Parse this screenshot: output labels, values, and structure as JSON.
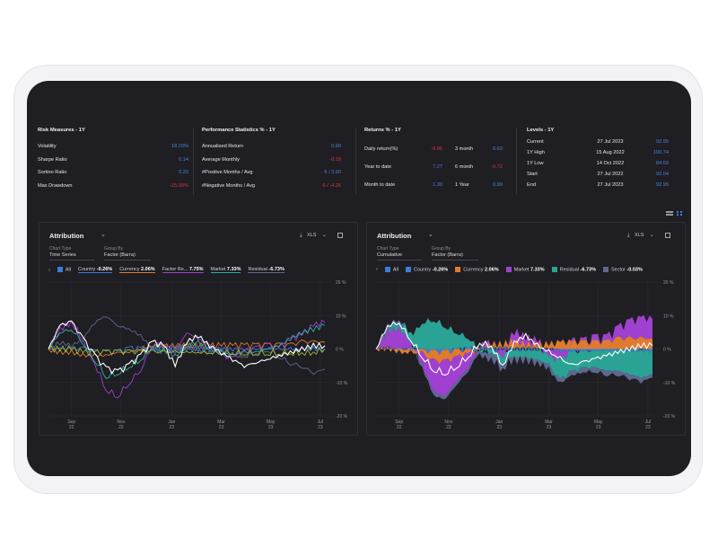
{
  "risk": {
    "title": "Risk Measures - 1Y",
    "rows": [
      {
        "label": "Volatility",
        "value": "18.20%",
        "sign": "pos"
      },
      {
        "label": "Sharpe Ratio",
        "value": "0.14",
        "sign": "pos"
      },
      {
        "label": "Sortino Ratio",
        "value": "0.20",
        "sign": "pos"
      },
      {
        "label": "Max Drawdown",
        "value": "-15.99%",
        "sign": "neg"
      }
    ]
  },
  "perf": {
    "title": "Performance Statistics % - 1Y",
    "rows": [
      {
        "label": "Annualised Return",
        "value": "0.99",
        "sign": "pos"
      },
      {
        "label": "Average Monthly",
        "value": "-0.18",
        "sign": "neg"
      },
      {
        "label": "#Positive Months / Avg",
        "value": "6 / 3.90",
        "sign": "pos"
      },
      {
        "label": "#Negative Months / Avg",
        "value": "6 / -4.26",
        "sign": "neg"
      }
    ]
  },
  "returns": {
    "title": "Returns % - 1Y",
    "rows": [
      {
        "label": "Daily return(%)",
        "value": "-0.05",
        "sign": "neg",
        "label2": "3 month",
        "value2": "6.63",
        "sign2": "pos"
      },
      {
        "label": "Year to date",
        "value": "7.27",
        "sign": "pos",
        "label2": "6 month",
        "value2": "-0.72",
        "sign2": "neg"
      },
      {
        "label": "Month to date",
        "value": "1.30",
        "sign": "pos",
        "label2": "1 Year",
        "value2": "0.99",
        "sign2": "pos"
      }
    ]
  },
  "levels": {
    "title": "Levels - 1Y",
    "rows": [
      {
        "label": "Current",
        "date": "27 Jul 2023",
        "value": "92.95"
      },
      {
        "label": "1Y High",
        "date": "15 Aug 2022",
        "value": "100.74"
      },
      {
        "label": "1Y Low",
        "date": "14 Oct 2022",
        "value": "84.69"
      },
      {
        "label": "Start",
        "date": "27 Jul 2022",
        "value": "92.04"
      },
      {
        "label": "End",
        "date": "27 Jul 2023",
        "value": "92.95"
      }
    ]
  },
  "panels": [
    {
      "title": "Attribution",
      "xls": "XLS",
      "chart_type_label": "Chart Type",
      "chart_type": "Time Series",
      "group_by_label": "Group By",
      "group_by": "Factor (Barra)",
      "all_label": "All"
    },
    {
      "title": "Attribution",
      "xls": "XLS",
      "chart_type_label": "Chart Type",
      "chart_type": "Cumulative",
      "group_by_label": "Group By",
      "group_by": "Factor (Barra)",
      "all_label": "All"
    }
  ],
  "chart_data": [
    {
      "type": "line",
      "title": "Attribution - Time Series",
      "ylim": [
        -20,
        20
      ],
      "yticks": [
        "20 %",
        "10 %",
        "0 %",
        "-10 %",
        "-20 %"
      ],
      "xticks": [
        {
          "m": "Sep",
          "y": "22",
          "i": 2
        },
        {
          "m": "Nov",
          "y": "22",
          "i": 6.3
        },
        {
          "m": "Jan",
          "y": "23",
          "i": 10.7
        },
        {
          "m": "Mar",
          "y": "23",
          "i": 15
        },
        {
          "m": "May",
          "y": "23",
          "i": 19.3
        },
        {
          "m": "Jul",
          "y": "23",
          "i": 23.6
        }
      ],
      "series": [
        {
          "name": "Country",
          "value": "-0.26%",
          "color": "#3b7dd8",
          "values": [
            0,
            0,
            0,
            0,
            -1,
            -1,
            -1,
            0,
            0,
            0,
            0,
            0,
            0,
            0,
            0,
            0,
            0,
            0,
            0,
            0,
            0,
            0,
            0,
            0,
            0
          ]
        },
        {
          "name": "Currency",
          "value": "2.06%",
          "color": "#e07a2e",
          "values": [
            0,
            -1,
            -1,
            -2,
            -2,
            -2,
            -1,
            -1,
            0,
            1,
            1,
            1,
            1,
            1,
            1,
            1,
            1,
            1,
            1,
            1,
            1,
            1,
            2,
            2,
            2
          ]
        },
        {
          "name": "Factor Re...",
          "value": "7.75%",
          "color": "#a040d0",
          "values": [
            0,
            6,
            8,
            3,
            -4,
            -12,
            -14,
            -10,
            -6,
            1,
            2,
            -1,
            5,
            3,
            1,
            -2,
            -3,
            -1,
            0,
            1,
            0,
            3,
            4,
            7,
            8
          ]
        },
        {
          "name": "Market",
          "value": "7.33%",
          "color": "#2bb0a0",
          "values": [
            0,
            5,
            6,
            2,
            -3,
            -8,
            -7,
            -5,
            -3,
            1,
            0,
            -2,
            1,
            2,
            0,
            -1,
            -2,
            -1,
            -1,
            0,
            1,
            3,
            5,
            6,
            7
          ]
        },
        {
          "name": "Residual",
          "value": "-6.73%",
          "color": "#5c6890",
          "values": [
            0,
            2,
            1,
            3,
            8,
            10,
            7,
            6,
            4,
            0,
            -1,
            0,
            1,
            0,
            -1,
            0,
            -1,
            -2,
            -1,
            0,
            -2,
            -4,
            -5,
            -7,
            -6
          ]
        },
        {
          "name": "",
          "value": "",
          "color": "#9ab830",
          "values": [
            0,
            0,
            0,
            -1,
            -1,
            -1,
            -1,
            -1,
            -1,
            -1,
            -1,
            -1,
            -1,
            -1,
            -1,
            -1,
            -1,
            -1,
            -1,
            -1,
            -1,
            -1,
            -1,
            -1,
            0
          ]
        },
        {
          "name": "",
          "value": "",
          "color": "#ffffff",
          "values": [
            0,
            7,
            8,
            3,
            -2,
            -6,
            -7,
            -5,
            -2,
            2,
            1,
            -5,
            2,
            4,
            1,
            -1,
            -3,
            -5,
            -4,
            -3,
            -2,
            -1,
            0,
            1,
            1
          ]
        }
      ]
    },
    {
      "type": "area",
      "title": "Attribution - Cumulative",
      "ylim": [
        -20,
        20
      ],
      "yticks": [
        "20 %",
        "10 %",
        "0 %",
        "-10 %",
        "-20 %"
      ],
      "xticks": [
        {
          "m": "Sep",
          "y": "22",
          "i": 2
        },
        {
          "m": "Nov",
          "y": "22",
          "i": 6.3
        },
        {
          "m": "Jan",
          "y": "23",
          "i": 10.7
        },
        {
          "m": "Mar",
          "y": "23",
          "i": 15
        },
        {
          "m": "May",
          "y": "23",
          "i": 19.3
        },
        {
          "m": "Jul",
          "y": "23",
          "i": 23.6
        }
      ],
      "series": [
        {
          "name": "Country",
          "value": "-0.26%",
          "color": "#3b7dd8",
          "values": [
            0,
            0,
            0,
            0,
            -0.5,
            -1,
            -1,
            -0.5,
            0,
            0,
            0,
            0,
            0,
            0,
            0,
            0,
            -0.5,
            -0.5,
            -0.5,
            -0.5,
            -0.5,
            -0.5,
            -0.5,
            -0.5,
            -0.5
          ]
        },
        {
          "name": "Currency",
          "value": "2.06%",
          "color": "#e07a2e",
          "values": [
            0,
            0,
            -1,
            -1,
            -1,
            -3,
            -3,
            -2,
            -1,
            0,
            1,
            1,
            2,
            1,
            1,
            1,
            2,
            2,
            2,
            2,
            2,
            3,
            3,
            3,
            3
          ]
        },
        {
          "name": "Market",
          "value": "7.33%",
          "color": "#a040d0",
          "values": [
            0,
            5,
            6,
            2,
            -3,
            -9,
            -10,
            -7,
            -4,
            1,
            1,
            -2,
            3,
            2,
            1,
            -2,
            -3,
            0,
            0,
            1,
            1,
            3,
            5,
            6,
            6
          ]
        },
        {
          "name": "Residual",
          "value": "-6.73%",
          "color": "#2aa394",
          "values": [
            0,
            1,
            2,
            3,
            8,
            9,
            7,
            5,
            3,
            0,
            -1,
            -2,
            -2,
            -2,
            -3,
            -3,
            -6,
            -6,
            -5,
            -5,
            -6,
            -6,
            -7,
            -8,
            -7
          ]
        },
        {
          "name": "Sector",
          "value": "-0.03%",
          "color": "#5c6890",
          "values": [
            0,
            1,
            1,
            0,
            -1,
            -1,
            -1,
            -1,
            -1,
            -1,
            -2,
            -2,
            -1,
            -1,
            -1,
            -1,
            -1,
            -1,
            -1,
            -1,
            -1,
            -1,
            -1,
            -1,
            -1
          ]
        }
      ],
      "total": [
        0,
        7,
        8,
        3,
        -2,
        -6,
        -7,
        -5,
        -2,
        2,
        1,
        -5,
        2,
        4,
        1,
        -1,
        -3,
        -5,
        -4,
        -3,
        -2,
        -1,
        0,
        1,
        1
      ]
    }
  ]
}
